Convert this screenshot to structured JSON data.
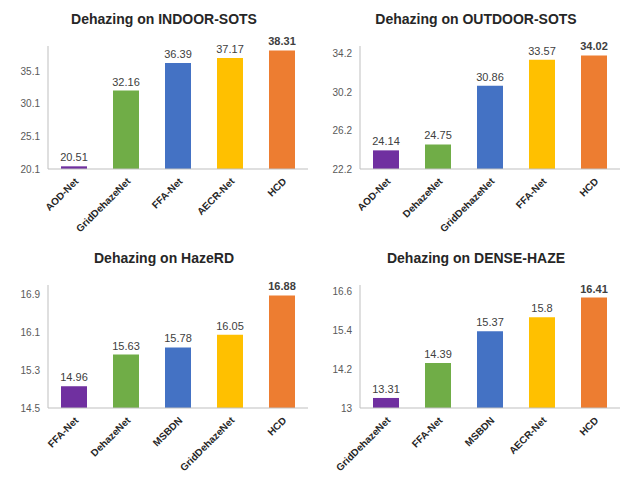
{
  "chart_data": [
    {
      "type": "bar",
      "title": "Dehazing on INDOOR-SOTS",
      "categories": [
        "AOD-Net",
        "GridDehazeNet",
        "FFA-Net",
        "AECR-Net",
        "HCD"
      ],
      "values": [
        20.51,
        32.16,
        36.39,
        37.17,
        38.31
      ],
      "colors": [
        "#7030a0",
        "#70ad47",
        "#4472c4",
        "#ffc000",
        "#ed7d31"
      ],
      "ylim": [
        20.1,
        39
      ],
      "yticks": [
        20.1,
        25.1,
        30.1,
        35.1
      ],
      "data_labels": true,
      "grid": false
    },
    {
      "type": "bar",
      "title": "Dehazing on OUTDOOR-SOTS",
      "categories": [
        "AOD-Net",
        "DehazeNet",
        "GridDehazeNet",
        "FFA-Net",
        "HCD"
      ],
      "values": [
        24.14,
        24.75,
        30.86,
        33.57,
        34.02
      ],
      "colors": [
        "#7030a0",
        "#70ad47",
        "#4472c4",
        "#ffc000",
        "#ed7d31"
      ],
      "ylim": [
        22.2,
        35
      ],
      "yticks": [
        22.2,
        26.2,
        30.2,
        34.2
      ],
      "data_labels": true,
      "grid": false
    },
    {
      "type": "bar",
      "title": "Dehazing on HazeRD",
      "categories": [
        "FFA-Net",
        "DehazeNet",
        "MSBDN",
        "GridDehazeNet",
        "HCD"
      ],
      "values": [
        14.96,
        15.63,
        15.78,
        16.05,
        16.88
      ],
      "colors": [
        "#7030a0",
        "#70ad47",
        "#4472c4",
        "#ffc000",
        "#ed7d31"
      ],
      "ylim": [
        14.5,
        17.1
      ],
      "yticks": [
        14.5,
        15.3,
        16.1,
        16.9
      ],
      "data_labels": true,
      "grid": false
    },
    {
      "type": "bar",
      "title": "Dehazing on DENSE-HAZE",
      "categories": [
        "GridDehazeNet",
        "FFA-Net",
        "MSBDN",
        "AECR-Net",
        "HCD"
      ],
      "values": [
        13.31,
        14.39,
        15.37,
        15.8,
        16.41
      ],
      "colors": [
        "#7030a0",
        "#70ad47",
        "#4472c4",
        "#ffc000",
        "#ed7d31"
      ],
      "ylim": [
        13,
        16.8
      ],
      "yticks": [
        13,
        14.2,
        15.4,
        16.6
      ],
      "data_labels": true,
      "grid": false
    }
  ]
}
